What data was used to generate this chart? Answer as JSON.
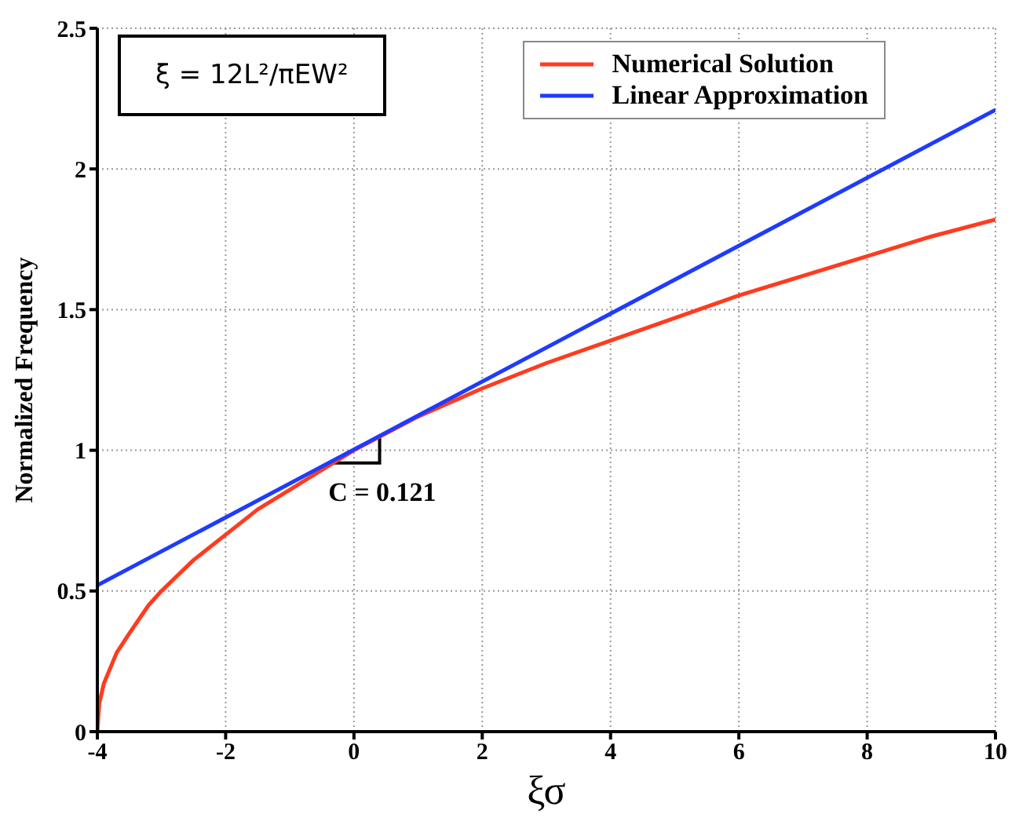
{
  "chart_data": {
    "type": "line",
    "xlabel": "ξσ",
    "ylabel": "Normalized Frequency",
    "series": [
      {
        "name": "Numerical Solution",
        "color": "#ff3b1f",
        "x": [
          -4,
          -3.97,
          -3.9,
          -3.7,
          -3.5,
          -3.2,
          -3,
          -2.5,
          -2,
          -1.5,
          -1,
          -0.5,
          0,
          0.5,
          1,
          1.5,
          2,
          3,
          4,
          5,
          6,
          7,
          8,
          9,
          10
        ],
        "values": [
          0,
          0.1,
          0.17,
          0.28,
          0.35,
          0.45,
          0.5,
          0.61,
          0.7,
          0.79,
          0.86,
          0.93,
          1.0,
          1.06,
          1.12,
          1.17,
          1.22,
          1.31,
          1.39,
          1.47,
          1.55,
          1.62,
          1.69,
          1.76,
          1.82
        ]
      },
      {
        "name": "Linear Approximation",
        "color": "#1f3bff",
        "x": [
          -4,
          10
        ],
        "values": [
          0.52,
          2.21
        ]
      }
    ],
    "xlim": [
      -4,
      10
    ],
    "xticks": [
      -4,
      -2,
      0,
      2,
      4,
      6,
      8,
      10
    ],
    "ylim": [
      0,
      2.5
    ],
    "yticks": [
      0,
      0.5,
      1,
      1.5,
      2,
      2.5
    ],
    "grid": true,
    "legend": "top right",
    "marker": "none",
    "line_style": "solid",
    "annotations": [
      "ξ = 12L²/πEW²",
      "C = 0.121"
    ]
  }
}
